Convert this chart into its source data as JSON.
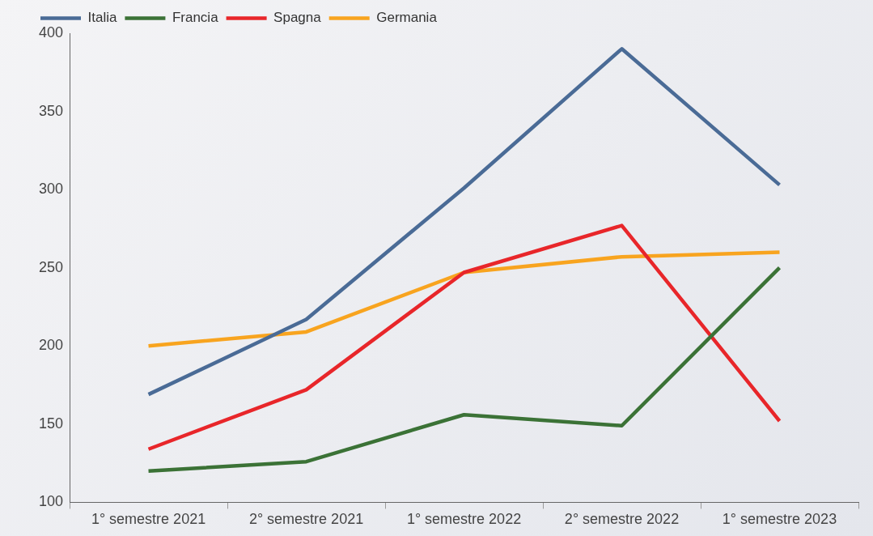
{
  "chart_data": {
    "type": "line",
    "categories": [
      "1° semestre 2021",
      "2° semestre 2021",
      "1° semestre 2022",
      "2° semestre 2022",
      "1° semestre 2023"
    ],
    "series": [
      {
        "name": "Italia",
        "color": "#4a6b96",
        "values": [
          169,
          217,
          301,
          390,
          303
        ]
      },
      {
        "name": "Francia",
        "color": "#3b7236",
        "values": [
          120,
          126,
          156,
          149,
          250
        ]
      },
      {
        "name": "Spagna",
        "color": "#e8262a",
        "values": [
          134,
          172,
          247,
          277,
          152
        ]
      },
      {
        "name": "Germania",
        "color": "#f8a41f",
        "values": [
          200,
          209,
          247,
          257,
          260
        ]
      }
    ],
    "ylim": [
      100,
      400
    ],
    "yticks": [
      100,
      150,
      200,
      250,
      300,
      350,
      400
    ],
    "grid": false,
    "legend": "top left",
    "marker": "none",
    "line_style": "solid"
  }
}
